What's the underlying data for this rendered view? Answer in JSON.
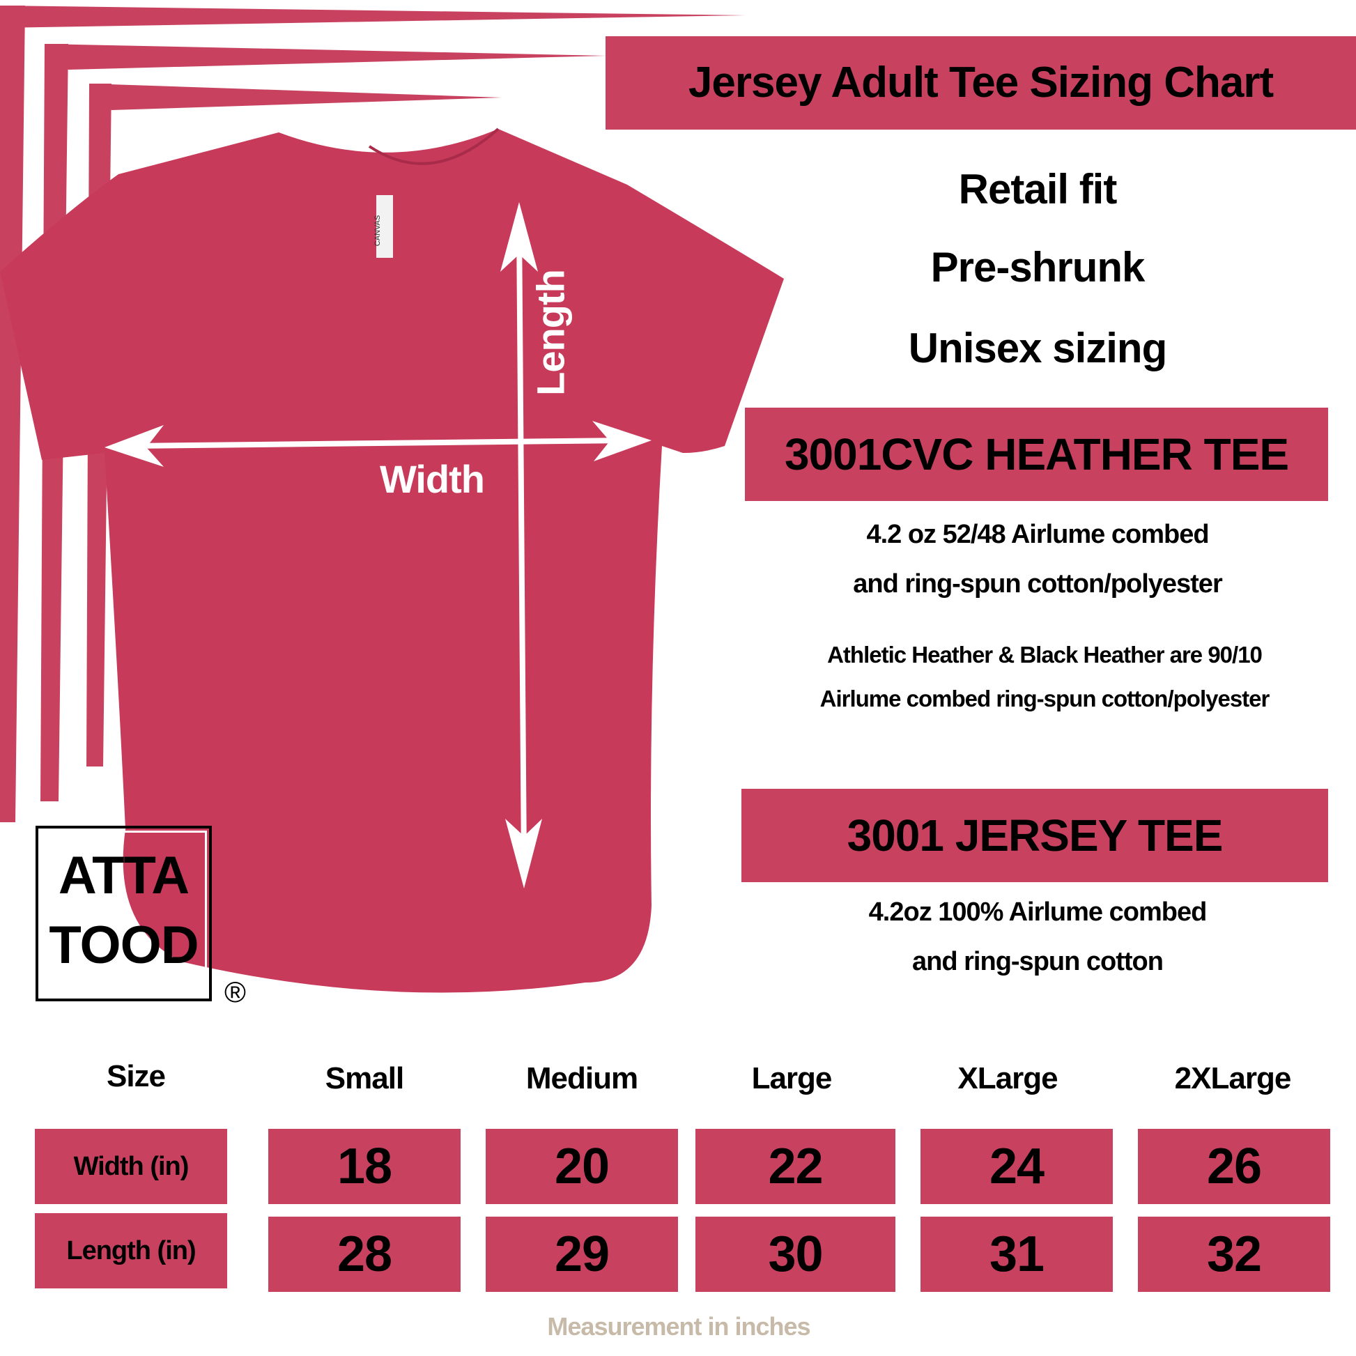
{
  "title": "Jersey Adult Tee Sizing Chart",
  "features": [
    "Retail fit",
    "Pre-shrunk",
    "Unisex sizing"
  ],
  "products": [
    {
      "name": "3001CVC HEATHER TEE",
      "lines": [
        "4.2 oz 52/48 Airlume combed",
        "and ring-spun cotton/polyester"
      ],
      "note": [
        "Athletic Heather & Black Heather are 90/10",
        "Airlume combed ring-spun cotton/polyester"
      ]
    },
    {
      "name": "3001 JERSEY TEE",
      "lines": [
        "4.2oz 100% Airlume combed",
        "and ring-spun cotton"
      ]
    }
  ],
  "diagram": {
    "width_label": "Width",
    "length_label": "Length",
    "tag_text": "CANVAS"
  },
  "logo": {
    "line1": "ATTA",
    "line2": "TOOD",
    "mark": "®"
  },
  "table": {
    "header": [
      "Size",
      "Small",
      "Medium",
      "Large",
      "XLarge",
      "2XLarge"
    ],
    "rows": [
      {
        "label": "Width (in)",
        "values": [
          "18",
          "20",
          "22",
          "24",
          "26"
        ]
      },
      {
        "label": "Length (in)",
        "values": [
          "28",
          "29",
          "30",
          "31",
          "32"
        ]
      }
    ]
  },
  "footnote": "Measurement in inches",
  "colors": {
    "accent": "#c84260",
    "shirt": "#c83a5a",
    "footnote": "#c8baa8"
  }
}
